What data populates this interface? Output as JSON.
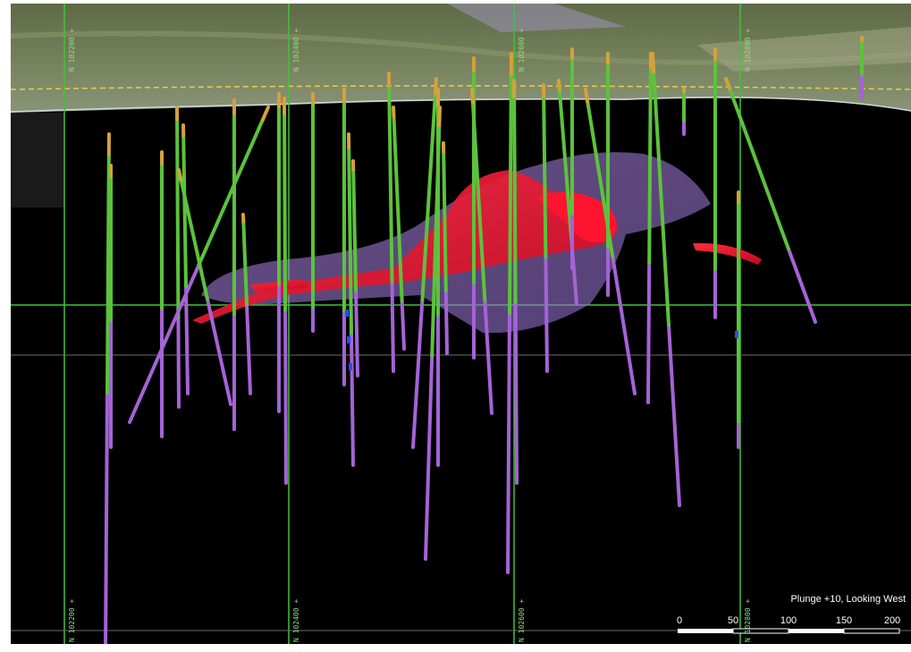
{
  "view": {
    "caption": "Plunge +10, Looking West"
  },
  "scale_bar": {
    "ticks": [
      "0",
      "50",
      "100",
      "150",
      "200"
    ]
  },
  "grid_lines": {
    "labels": [
      "N 102200 +",
      "N 102400 +",
      "N 102600 +",
      "N 102800 +"
    ]
  },
  "colors": {
    "background": "#000000",
    "drillhole": "#5cc23c",
    "drillhole_lower": "#a463d6",
    "collar": "#d6a13a",
    "ore_body": "#e0102a",
    "envelope": "#a07ad8",
    "grid": "#3fc33a",
    "topography": "#6b7a52",
    "surface_line": "#e8d23c"
  }
}
